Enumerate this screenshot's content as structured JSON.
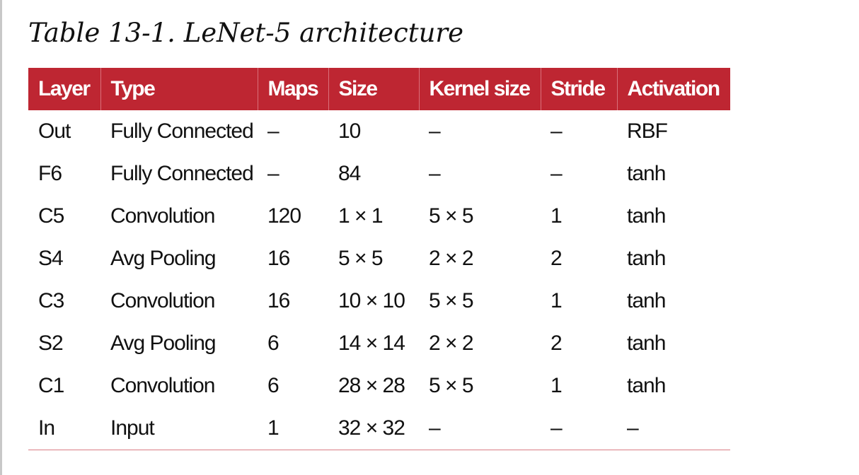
{
  "caption": "Table 13-1. LeNet-5 architecture",
  "table": {
    "headers": [
      "Layer",
      "Type",
      "Maps",
      "Size",
      "Kernel size",
      "Stride",
      "Activation"
    ],
    "rows": [
      [
        "Out",
        "Fully Connected",
        "–",
        "10",
        "–",
        "–",
        "RBF"
      ],
      [
        "F6",
        "Fully Connected",
        "–",
        "84",
        "–",
        "–",
        "tanh"
      ],
      [
        "C5",
        "Convolution",
        "120",
        "1 × 1",
        "5 × 5",
        "1",
        "tanh"
      ],
      [
        "S4",
        "Avg Pooling",
        "16",
        "5 × 5",
        "2 × 2",
        "2",
        "tanh"
      ],
      [
        "C3",
        "Convolution",
        "16",
        "10 × 10",
        "5 × 5",
        "1",
        "tanh"
      ],
      [
        "S2",
        "Avg Pooling",
        "6",
        "14 × 14",
        "2 × 2",
        "2",
        "tanh"
      ],
      [
        "C1",
        "Convolution",
        "6",
        "28 × 28",
        "5 × 5",
        "1",
        "tanh"
      ],
      [
        "In",
        "Input",
        "1",
        "32 × 32",
        "–",
        "–",
        "–"
      ]
    ]
  },
  "colors": {
    "header_background": "#be2632",
    "header_text": "#ffffff",
    "body_text": "#111111",
    "bottom_rule": "#d97b84"
  }
}
